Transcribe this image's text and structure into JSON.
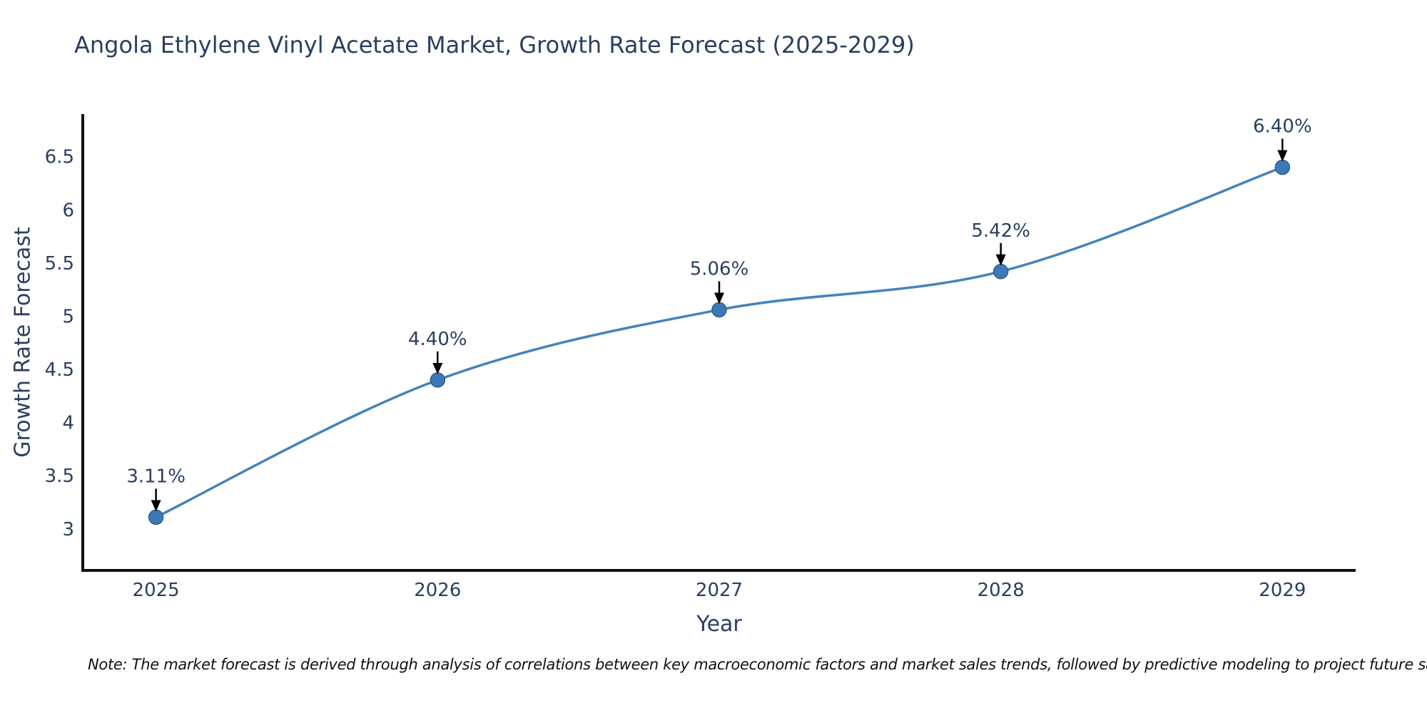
{
  "header": {
    "title": "Angola Ethylene Vinyl Acetate Market, Growth Rate Forecast (2025-2029)"
  },
  "chart_data": {
    "type": "line",
    "title": "Angola Ethylene Vinyl Acetate Market, Growth Rate Forecast (2025-2029)",
    "xlabel": "Year",
    "ylabel": "Growth Rate Forecast",
    "x": [
      2025,
      2026,
      2027,
      2028,
      2029
    ],
    "categories": [
      "2025",
      "2026",
      "2027",
      "2028",
      "2029"
    ],
    "values": [
      3.11,
      4.4,
      5.06,
      5.42,
      6.4
    ],
    "point_labels": [
      "3.11%",
      "4.40%",
      "5.06%",
      "5.42%",
      "6.40%"
    ],
    "y_ticks": [
      3,
      3.5,
      4,
      4.5,
      5,
      5.5,
      6,
      6.5
    ],
    "y_tick_labels": [
      "3",
      "3.5",
      "4",
      "4.5",
      "5",
      "5.5",
      "6",
      "6.5"
    ],
    "x_range": [
      2024.74,
      2029.26
    ],
    "y_range": [
      2.61,
      6.9
    ],
    "line_shape": "spline",
    "grid": false,
    "legend": "none",
    "colors": {
      "line": "#4383bc",
      "marker_fill": "#3d7ab5",
      "marker_stroke": "#2b5f8f",
      "arrow": "#000000",
      "axis": "#111111",
      "text": "#2a3f5f"
    }
  },
  "footnote": {
    "text": "Note: The market forecast is derived through analysis of correlations between key macroeconomic factors and market sales trends, followed by predictive modeling to project future sales"
  }
}
